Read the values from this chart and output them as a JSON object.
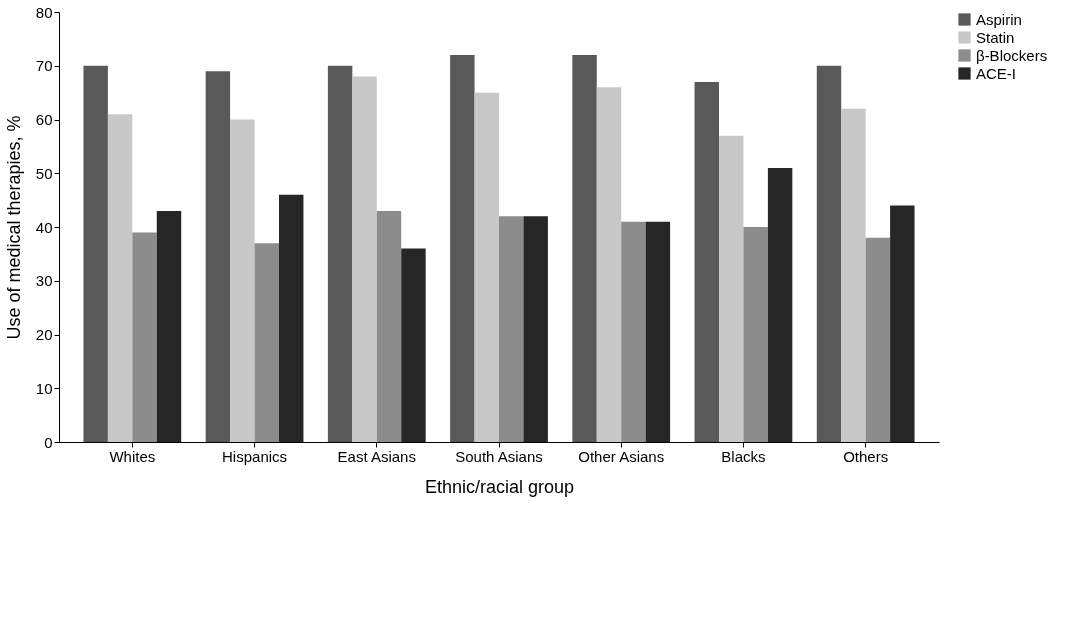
{
  "chart_data": {
    "type": "bar",
    "xlabel": "Ethnic/racial group",
    "ylabel": "Use of medical therapies, %",
    "categories": [
      "Whites",
      "Hispanics",
      "East Asians",
      "South Asians",
      "Other Asians",
      "Blacks",
      "Others"
    ],
    "series": [
      {
        "name": "Aspirin",
        "color": "#595959",
        "values": [
          70,
          69,
          70,
          72,
          72,
          67,
          70
        ]
      },
      {
        "name": "Statin",
        "color": "#c8c8c8",
        "values": [
          61,
          60,
          68,
          65,
          66,
          57,
          62
        ]
      },
      {
        "name": "β-Blockers",
        "color": "#8c8c8c",
        "values": [
          39,
          37,
          43,
          42,
          41,
          40,
          38
        ]
      },
      {
        "name": "ACE-I",
        "color": "#262626",
        "values": [
          43,
          46,
          36,
          42,
          41,
          51,
          44
        ]
      }
    ],
    "ylim": [
      0,
      80
    ],
    "yticks": [
      0,
      10,
      20,
      30,
      40,
      50,
      60,
      70,
      80
    ],
    "grid": false,
    "legend": "right"
  }
}
